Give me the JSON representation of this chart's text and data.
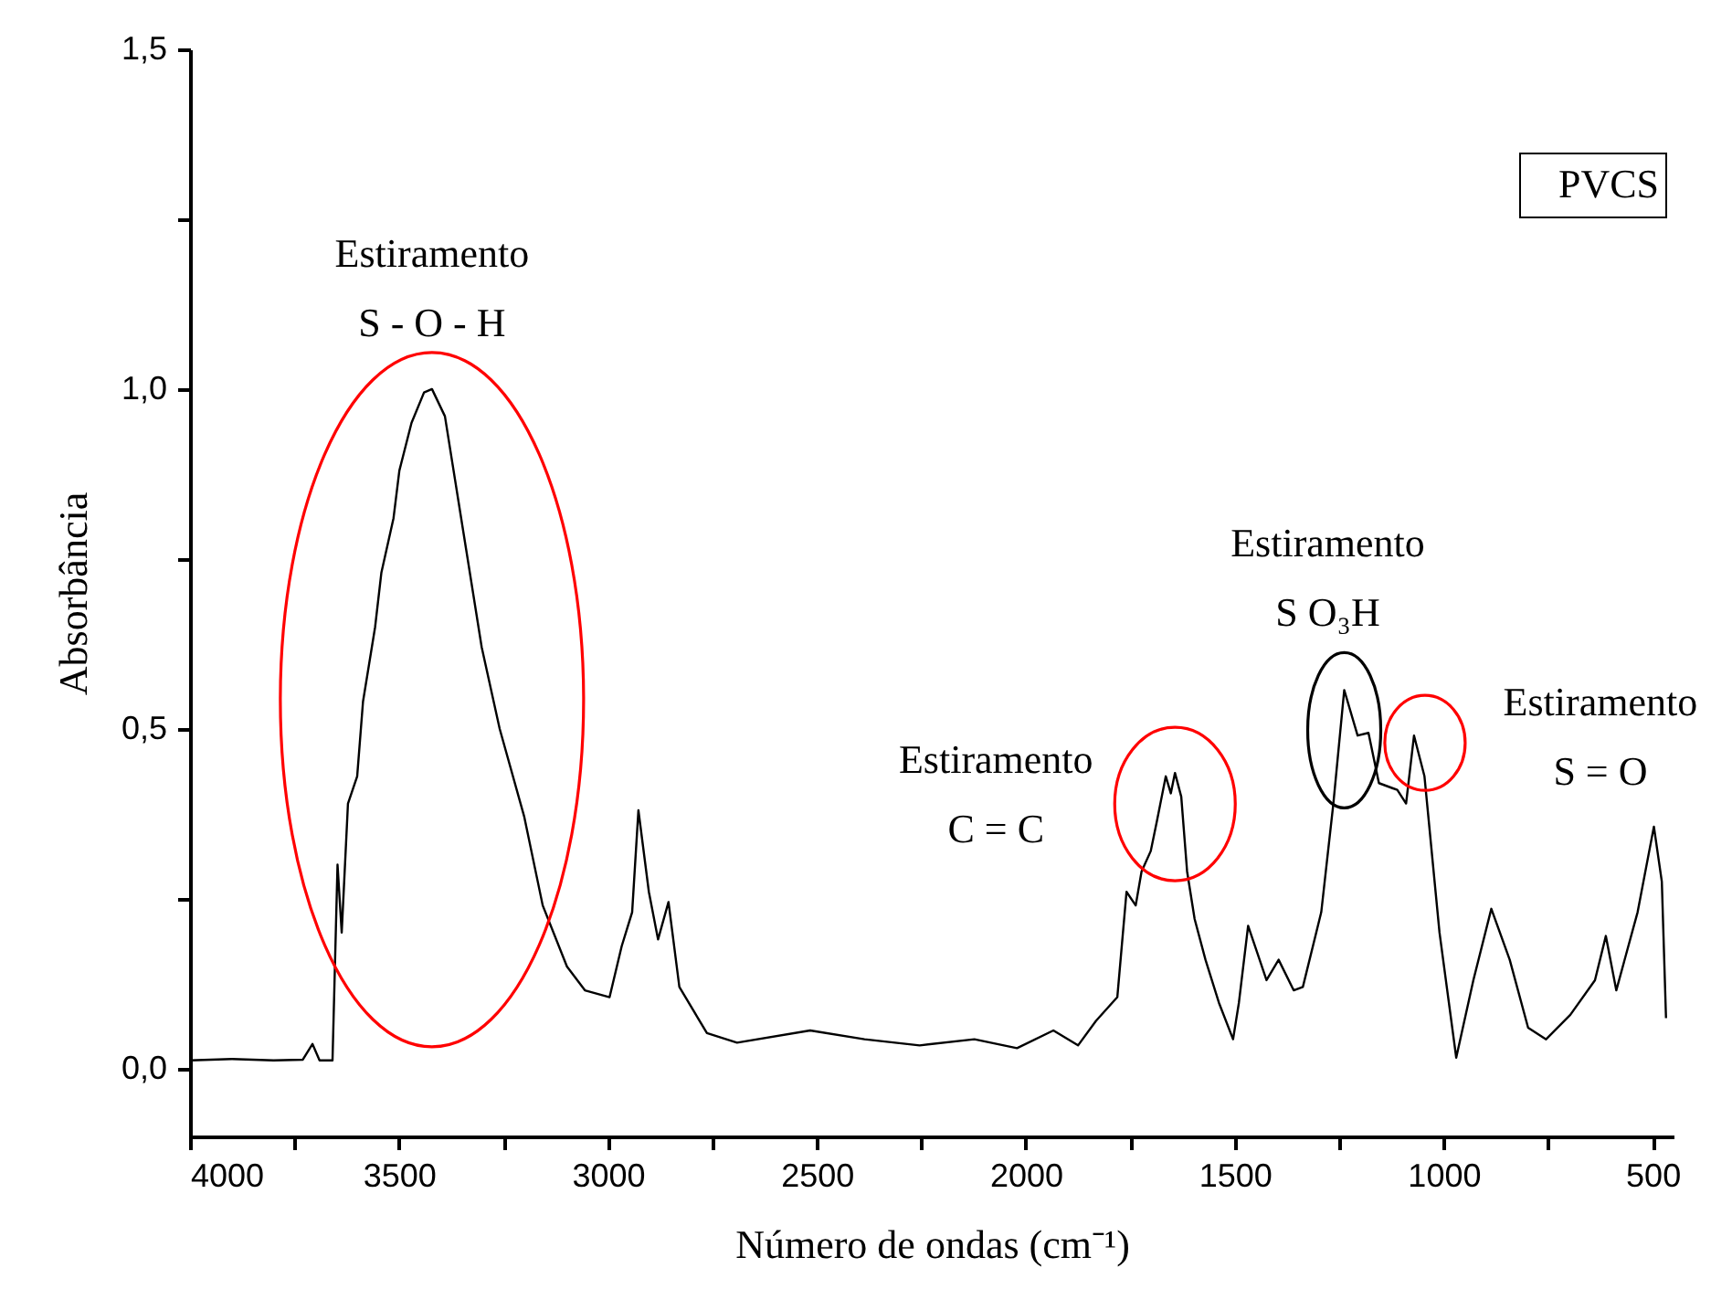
{
  "chart_data": {
    "type": "line",
    "xlabel": "Número de ondas (cm⁻¹)",
    "ylabel": "Absorbância",
    "xlim": [
      4000,
      450
    ],
    "ylim": [
      -0.1,
      1.5
    ],
    "xticks": [
      4000,
      {
        "value": 3750,
        "label": null
      },
      3500,
      {
        "value": 3250,
        "label": null
      },
      3000,
      {
        "value": 2750,
        "label": null
      },
      2500,
      {
        "value": 2250,
        "label": null
      },
      2000,
      {
        "value": 1750,
        "label": null
      },
      1500,
      {
        "value": 1250,
        "label": null
      },
      1000,
      {
        "value": 750,
        "label": null
      },
      500
    ],
    "yticks": [
      {
        "value": 0,
        "label": "0,0"
      },
      {
        "value": 0.25,
        "label": null
      },
      {
        "value": 0.5,
        "label": "0,5"
      },
      {
        "value": 0.75,
        "label": null
      },
      {
        "value": 1.0,
        "label": "1,0"
      },
      {
        "value": 1.25,
        "label": null
      },
      {
        "value": 1.5,
        "label": "1,5"
      }
    ],
    "grid": false,
    "marker": "none",
    "line_style": "solid",
    "series": [
      {
        "color": "#000000",
        "x": [
          4000,
          3900,
          3800,
          3730,
          3707,
          3690,
          3659,
          3647,
          3637,
          3622,
          3600,
          3586,
          3557,
          3542,
          3513,
          3499,
          3470,
          3440,
          3421,
          3390,
          3346,
          3302,
          3259,
          3200,
          3156,
          3098,
          3055,
          2996,
          2967,
          2942,
          2927,
          2902,
          2880,
          2855,
          2829,
          2763,
          2691,
          2516,
          2386,
          2254,
          2123,
          2021,
          1934,
          1875,
          1832,
          1781,
          1759,
          1737,
          1723,
          1701,
          1686,
          1665,
          1653,
          1643,
          1628,
          1614,
          1596,
          1570,
          1538,
          1504,
          1490,
          1468,
          1446,
          1424,
          1395,
          1359,
          1337,
          1293,
          1264,
          1238,
          1206,
          1180,
          1155,
          1111,
          1090,
          1071,
          1046,
          1010,
          970,
          929,
          886,
          842,
          798,
          755,
          697,
          638,
          612,
          587,
          536,
          497,
          478,
          468
        ],
        "values": [
          0.012,
          0.014,
          0.012,
          0.013,
          0.036,
          0.012,
          0.012,
          0.3,
          0.2,
          0.39,
          0.43,
          0.54,
          0.65,
          0.73,
          0.81,
          0.88,
          0.95,
          0.995,
          1.0,
          0.96,
          0.79,
          0.62,
          0.5,
          0.37,
          0.24,
          0.15,
          0.115,
          0.105,
          0.18,
          0.23,
          0.38,
          0.26,
          0.19,
          0.245,
          0.12,
          0.052,
          0.038,
          0.056,
          0.043,
          0.034,
          0.043,
          0.03,
          0.056,
          0.034,
          0.07,
          0.105,
          0.26,
          0.24,
          0.29,
          0.32,
          0.365,
          0.43,
          0.405,
          0.435,
          0.4,
          0.29,
          0.22,
          0.16,
          0.097,
          0.043,
          0.097,
          0.21,
          0.17,
          0.13,
          0.16,
          0.115,
          0.12,
          0.23,
          0.39,
          0.557,
          0.49,
          0.494,
          0.42,
          0.41,
          0.39,
          0.49,
          0.43,
          0.2,
          0.016,
          0.13,
          0.235,
          0.16,
          0.06,
          0.043,
          0.079,
          0.13,
          0.195,
          0.115,
          0.23,
          0.356,
          0.275,
          0.074
        ]
      }
    ],
    "annotations": [
      {
        "text": "Estiramento\nS - O - H",
        "x": 3421,
        "y": 1.0
      },
      {
        "text": "Estiramento\nC = C",
        "x": 1643,
        "y": 0.435
      },
      {
        "text": "Estiramento\nS O₃H",
        "x": 1238,
        "y": 0.557
      },
      {
        "text": "Estiramento\nS = O",
        "x": 1071,
        "y": 0.49
      },
      "PVCS"
    ]
  }
}
